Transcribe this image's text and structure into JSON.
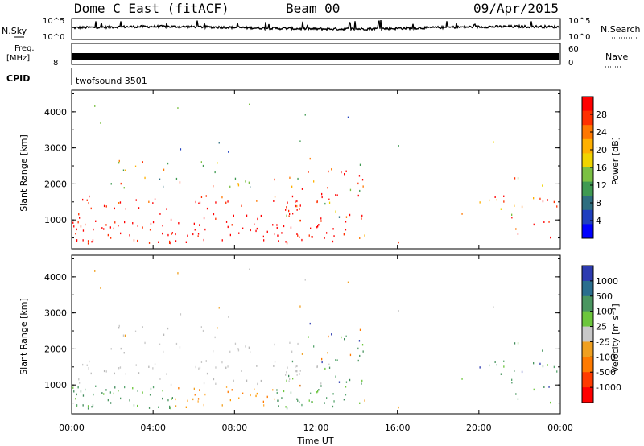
{
  "header": {
    "radar_name": "Dome C East (fitACF)",
    "beam_label": "Beam 00",
    "date_label": "09/Apr/2015"
  },
  "strips": {
    "nsky_label": "N.Sky",
    "nsky_ticks": [
      "10^5",
      "10^0"
    ],
    "nsearch_label": "N.Search",
    "nsearch_ticks": [
      "10^5",
      "10^0"
    ],
    "freq_label": "Freq.",
    "freq_unit": "[MHz]",
    "freq_ticks": [
      "8"
    ],
    "nave_label": "Nave",
    "nave_ticks": [
      "60",
      "0"
    ],
    "cpid_label": "CPID",
    "cpid_value": "twofsound 3501"
  },
  "chart_data": [
    {
      "type": "heatmap",
      "name": "power-panel",
      "ylabel": "Slant Range [km]",
      "ylim": [
        200,
        4600
      ],
      "yticks": [
        "1000",
        "2000",
        "3000",
        "4000"
      ],
      "xticks": [
        "00:00",
        "04:00",
        "08:00",
        "12:00",
        "16:00",
        "20:00",
        "00:00"
      ],
      "colorbar": {
        "label": "Power [dB]",
        "ticks": [
          "4",
          "8",
          "12",
          "16",
          "20",
          "24",
          "28"
        ],
        "colors": [
          "#0000ff",
          "#1f3fbf",
          "#2e6e80",
          "#3f9a52",
          "#7bc043",
          "#f0d400",
          "#ffb000",
          "#ff7700",
          "#ff3000",
          "#ff0000"
        ]
      }
    },
    {
      "type": "heatmap",
      "name": "velocity-panel",
      "ylabel": "Slant Range [km]",
      "ylim": [
        200,
        4600
      ],
      "yticks": [
        "1000",
        "2000",
        "3000",
        "4000"
      ],
      "xticks": [
        "00:00",
        "04:00",
        "08:00",
        "12:00",
        "16:00",
        "20:00",
        "00:00"
      ],
      "xlabel": "Time UT",
      "colorbar": {
        "label": "Velocity [m s⁻¹]",
        "ticks": [
          "1000",
          "500",
          "100",
          "25",
          "-25",
          "-100",
          "-500",
          "-1000"
        ],
        "colors": [
          "#2d3bb0",
          "#2a6e8e",
          "#4a9660",
          "#6cc63c",
          "#c8c8c8",
          "#f0a020",
          "#ff7a00",
          "#ff3a00",
          "#ff0000"
        ]
      }
    }
  ],
  "colors": {
    "power_high": "#ff0000",
    "power_mid": "#ff7700",
    "power_low": "#3f9a52",
    "velocity_grey": "#c8c8c8",
    "velocity_green": "#4a9660",
    "velocity_orange": "#ff9a00",
    "velocity_blue": "#2d3bb0"
  }
}
